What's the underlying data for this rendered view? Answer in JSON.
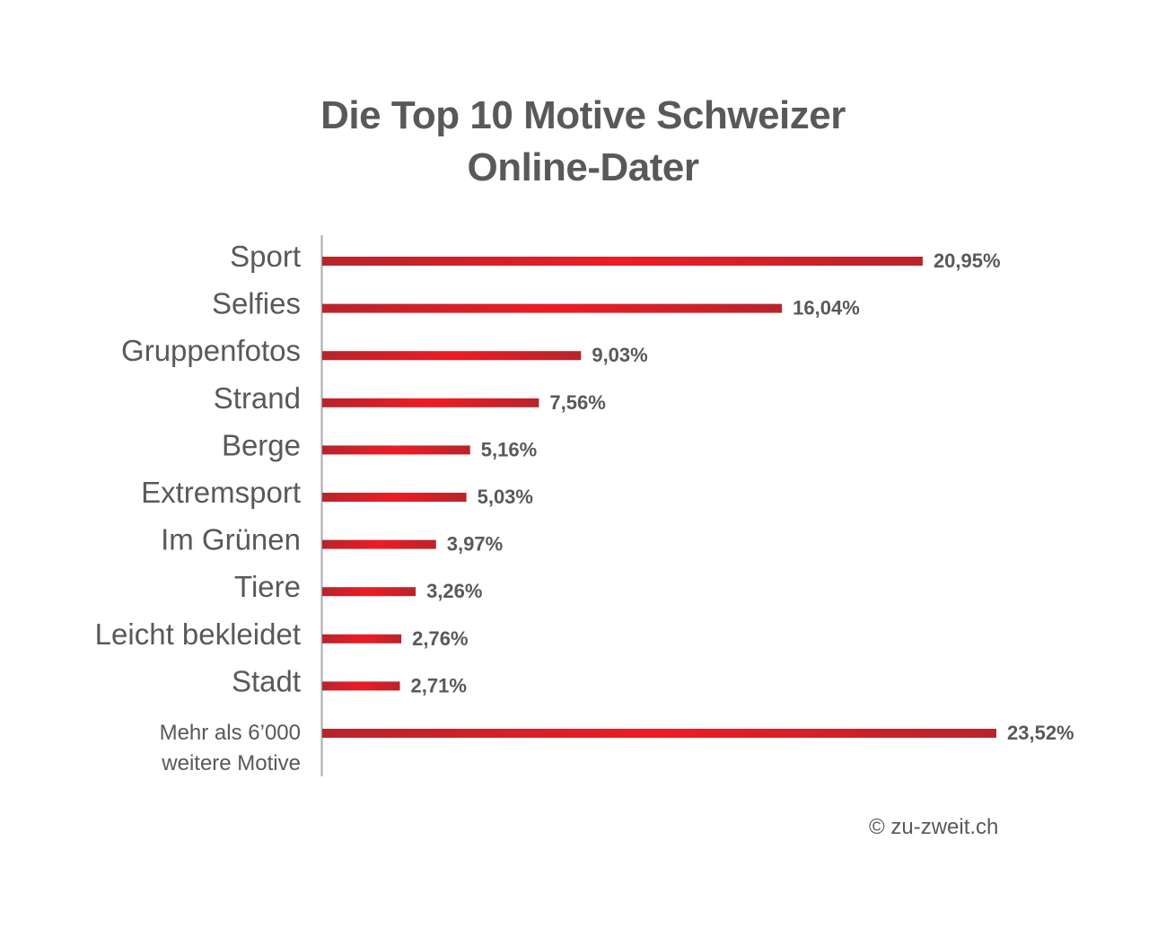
{
  "chart_data": {
    "type": "bar",
    "orientation": "horizontal",
    "title": "Die Top 10 Motive Schweizer Online-Dater",
    "title_lines": [
      "Die Top 10 Motive Schweizer",
      "Online-Dater"
    ],
    "categories": [
      "Sport",
      "Selfies",
      "Gruppenfotos",
      "Strand",
      "Berge",
      "Extremsport",
      "Im Grünen",
      "Tiere",
      "Leicht bekleidet",
      "Stadt",
      "Mehr als 6’000 weitere Motive"
    ],
    "category_lines": [
      [
        "Sport"
      ],
      [
        "Selfies"
      ],
      [
        "Gruppenfotos"
      ],
      [
        "Strand"
      ],
      [
        "Berge"
      ],
      [
        "Extremsport"
      ],
      [
        "Im Grünen"
      ],
      [
        "Tiere"
      ],
      [
        "Leicht bekleidet"
      ],
      [
        "Stadt"
      ],
      [
        "Mehr als 6’000",
        "weitere Motive"
      ]
    ],
    "values": [
      20.95,
      16.04,
      9.03,
      7.56,
      5.16,
      5.03,
      3.97,
      3.26,
      2.76,
      2.71,
      23.52
    ],
    "value_labels": [
      "20,95%",
      "16,04%",
      "9,03%",
      "7,56%",
      "5,16%",
      "5,03%",
      "3,97%",
      "3,26%",
      "2,76%",
      "2,71%",
      "23,52%"
    ],
    "unit": "%",
    "xlim": [
      0,
      23.52
    ],
    "grid": false,
    "legend": "none",
    "xlabel": "",
    "ylabel": ""
  },
  "colors": {
    "bar": "#d3272f",
    "bar_highlight": "#ed1c24",
    "bar_dark": "#b7242c",
    "text": "#58595b",
    "axis": "#a7a9ac"
  },
  "footer": {
    "copyright": "© zu-zweit.ch"
  }
}
